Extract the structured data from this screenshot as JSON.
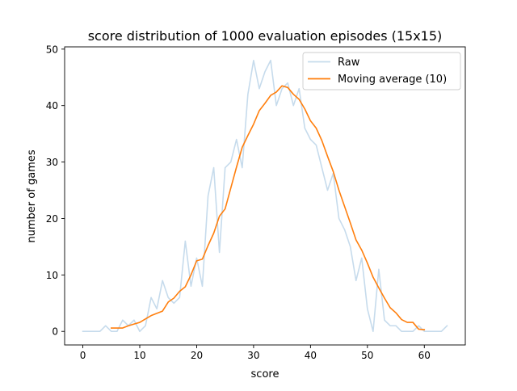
{
  "chart_data": {
    "type": "line",
    "title": "score distribution of 1000 evaluation episodes (15x15)",
    "xlabel": "score",
    "ylabel": "number of games",
    "xlim": [
      -3.2,
      67.2
    ],
    "ylim": [
      -2.4,
      50.4
    ],
    "xticks": [
      0,
      10,
      20,
      30,
      40,
      50,
      60
    ],
    "yticks": [
      0,
      10,
      20,
      30,
      40,
      50
    ],
    "grid": false,
    "legend_position": "top-right",
    "series": [
      {
        "name": "Raw",
        "color": "#c6dbec",
        "x": [
          0,
          1,
          2,
          3,
          4,
          5,
          6,
          7,
          8,
          9,
          10,
          11,
          12,
          13,
          14,
          15,
          16,
          17,
          18,
          19,
          20,
          21,
          22,
          23,
          24,
          25,
          26,
          27,
          28,
          29,
          30,
          31,
          32,
          33,
          34,
          35,
          36,
          37,
          38,
          39,
          40,
          41,
          42,
          43,
          44,
          45,
          46,
          47,
          48,
          49,
          50,
          51,
          52,
          53,
          54,
          55,
          56,
          57,
          58,
          59,
          60,
          61,
          62,
          63,
          64
        ],
        "y": [
          0,
          0,
          0,
          0,
          1,
          0,
          0,
          2,
          1,
          2,
          0,
          1,
          6,
          4,
          9,
          6,
          5,
          6,
          16,
          8,
          13,
          8,
          24,
          29,
          14,
          29,
          30,
          34,
          29,
          42,
          48,
          43,
          46,
          48,
          40,
          43,
          44,
          40,
          43,
          36,
          34,
          33,
          29,
          25,
          28,
          20,
          18,
          15,
          9,
          13,
          4,
          0,
          11,
          2,
          1,
          1,
          0,
          0,
          0,
          1,
          0,
          0,
          0,
          0,
          1
        ]
      },
      {
        "name": "Moving average (10)",
        "color": "#ff7f0e",
        "x": [
          5,
          6,
          7,
          8,
          9,
          10,
          11,
          12,
          13,
          14,
          15,
          16,
          17,
          18,
          19,
          20,
          21,
          22,
          23,
          24,
          25,
          26,
          27,
          28,
          29,
          30,
          31,
          32,
          33,
          34,
          35,
          36,
          37,
          38,
          39,
          40,
          41,
          42,
          43,
          44,
          45,
          46,
          47,
          48,
          49,
          50,
          51,
          52,
          53,
          54,
          55,
          56,
          57,
          58,
          59,
          60
        ],
        "y": [
          0.6,
          0.6,
          0.6,
          1.0,
          1.3,
          1.6,
          2.2,
          2.8,
          3.2,
          3.6,
          5.2,
          5.9,
          7.1,
          7.9,
          10.0,
          12.5,
          12.8,
          15.2,
          17.4,
          20.4,
          21.7,
          25.4,
          29.1,
          32.6,
          34.7,
          36.7,
          39.1,
          40.4,
          41.8,
          42.4,
          43.5,
          43.2,
          42.0,
          41.1,
          39.4,
          37.3,
          36.0,
          33.8,
          31.0,
          28.3,
          25.0,
          22.1,
          19.2,
          16.2,
          14.4,
          12.1,
          9.6,
          7.7,
          5.9,
          4.2,
          3.3,
          2.1,
          1.6,
          1.6,
          0.4,
          0.3
        ]
      }
    ]
  }
}
